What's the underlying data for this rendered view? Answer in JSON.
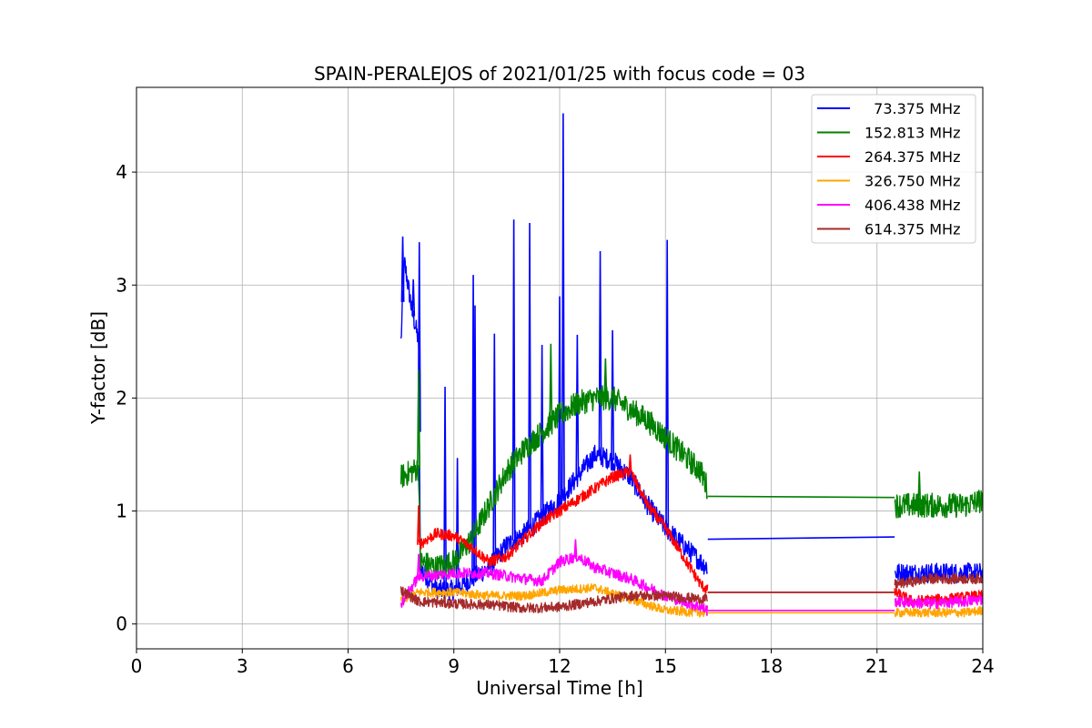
{
  "chart_data": {
    "type": "line",
    "title": "SPAIN-PERALEJOS of 2021/01/25 with focus code = 03",
    "xlabel": "Universal Time [h]",
    "ylabel": "Y-factor [dB]",
    "xlim": [
      0,
      24
    ],
    "ylim": [
      -0.22,
      4.75
    ],
    "xticks": [
      0,
      3,
      6,
      9,
      12,
      15,
      18,
      21,
      24
    ],
    "yticks": [
      0,
      1,
      2,
      3,
      4
    ],
    "grid": true,
    "legend_position": "top-right",
    "gap": [
      16.2,
      21.5
    ],
    "series": [
      {
        "name": "  73.375 MHz",
        "color": "#0000ff",
        "noise": 0.09,
        "x": [
          7.5,
          7.6,
          7.8,
          8.0,
          8.05,
          8.5,
          9.0,
          9.5,
          10.0,
          10.5,
          11.0,
          11.5,
          12.0,
          12.5,
          13.0,
          13.5,
          14.0,
          14.5,
          15.0,
          15.5,
          16.0,
          16.2,
          21.5,
          22.0,
          23.0,
          24.0
        ],
        "y": [
          2.5,
          3.2,
          2.8,
          2.5,
          0.5,
          0.3,
          0.3,
          0.4,
          0.5,
          0.7,
          0.8,
          0.95,
          1.1,
          1.3,
          1.5,
          1.45,
          1.3,
          1.05,
          0.85,
          0.7,
          0.55,
          0.5,
          0.45,
          0.45,
          0.45,
          0.45
        ],
        "spikes": [
          [
            7.55,
            3.43
          ],
          [
            7.85,
            3.05
          ],
          [
            8.02,
            3.38
          ],
          [
            8.75,
            2.1
          ],
          [
            9.1,
            1.47
          ],
          [
            9.55,
            3.09
          ],
          [
            9.6,
            2.82
          ],
          [
            10.15,
            2.57
          ],
          [
            10.7,
            3.58
          ],
          [
            11.15,
            3.55
          ],
          [
            11.5,
            2.47
          ],
          [
            12.0,
            2.9
          ],
          [
            12.1,
            4.52
          ],
          [
            12.5,
            2.56
          ],
          [
            13.15,
            3.3
          ],
          [
            13.5,
            2.6
          ],
          [
            15.05,
            3.4
          ]
        ],
        "gap_line": [
          [
            16.2,
            0.75
          ],
          [
            21.5,
            0.77
          ]
        ]
      },
      {
        "name": "152.813 MHz",
        "color": "#008000",
        "noise": 0.11,
        "x": [
          7.5,
          7.8,
          8.0,
          8.05,
          8.5,
          9.0,
          9.5,
          10.0,
          10.5,
          11.0,
          11.5,
          12.0,
          12.5,
          13.0,
          13.5,
          14.0,
          14.5,
          15.0,
          15.5,
          16.0,
          16.2,
          21.5,
          22.5,
          23.5,
          24.0
        ],
        "y": [
          1.3,
          1.35,
          1.38,
          0.55,
          0.5,
          0.55,
          0.75,
          1.05,
          1.35,
          1.55,
          1.7,
          1.85,
          1.95,
          2.0,
          2.0,
          1.9,
          1.8,
          1.65,
          1.5,
          1.35,
          1.2,
          1.05,
          1.05,
          1.05,
          1.1
        ],
        "spikes": [
          [
            8.0,
            2.25
          ],
          [
            11.75,
            2.48
          ],
          [
            13.3,
            2.35
          ],
          [
            22.2,
            1.35
          ]
        ],
        "gap_line": [
          [
            16.2,
            1.13
          ],
          [
            21.5,
            1.12
          ]
        ]
      },
      {
        "name": "264.375 MHz",
        "color": "#ff0000",
        "noise": 0.05,
        "x": [
          8.0,
          8.5,
          9.0,
          9.5,
          10.0,
          10.5,
          11.0,
          11.5,
          12.0,
          12.5,
          13.0,
          13.5,
          14.0,
          14.5,
          15.0,
          15.5,
          16.0,
          16.2,
          21.5,
          22.0,
          23.0,
          24.0
        ],
        "y": [
          0.7,
          0.8,
          0.78,
          0.68,
          0.55,
          0.6,
          0.75,
          0.9,
          1.0,
          1.1,
          1.2,
          1.3,
          1.35,
          1.05,
          0.85,
          0.6,
          0.35,
          0.3,
          0.28,
          0.2,
          0.22,
          0.25
        ],
        "spikes": [
          [
            8.0,
            1.05
          ],
          [
            14.0,
            1.5
          ]
        ],
        "gap_line": [
          [
            16.2,
            0.28
          ],
          [
            21.5,
            0.28
          ]
        ]
      },
      {
        "name": "326.750 MHz",
        "color": "#ffa500",
        "noise": 0.04,
        "x": [
          7.5,
          8.0,
          9.0,
          10.0,
          11.0,
          12.0,
          13.0,
          14.0,
          15.0,
          16.0,
          16.2,
          21.5,
          22.5,
          23.5,
          24.0
        ],
        "y": [
          0.2,
          0.28,
          0.28,
          0.25,
          0.25,
          0.3,
          0.32,
          0.22,
          0.12,
          0.1,
          0.1,
          0.1,
          0.1,
          0.1,
          0.12
        ],
        "spikes": [],
        "gap_line": [
          [
            16.2,
            0.1
          ],
          [
            21.5,
            0.1
          ]
        ]
      },
      {
        "name": "406.438 MHz",
        "color": "#ff00ff",
        "noise": 0.05,
        "x": [
          7.5,
          8.0,
          9.0,
          10.0,
          11.0,
          11.5,
          12.0,
          12.5,
          13.0,
          14.0,
          15.0,
          16.0,
          16.2,
          21.5,
          22.5,
          23.5,
          24.0
        ],
        "y": [
          0.18,
          0.42,
          0.45,
          0.45,
          0.4,
          0.38,
          0.55,
          0.6,
          0.5,
          0.4,
          0.25,
          0.15,
          0.12,
          0.2,
          0.18,
          0.2,
          0.22
        ],
        "spikes": [
          [
            8.0,
            0.62
          ],
          [
            12.45,
            0.75
          ]
        ],
        "gap_line": [
          [
            16.2,
            0.12
          ],
          [
            21.5,
            0.12
          ]
        ]
      },
      {
        "name": "614.375 MHz",
        "color": "#a52a2a",
        "noise": 0.045,
        "x": [
          7.5,
          8.0,
          9.0,
          10.0,
          11.0,
          12.0,
          13.0,
          14.0,
          15.0,
          16.0,
          16.2,
          21.5,
          22.5,
          23.5,
          24.0
        ],
        "y": [
          0.3,
          0.2,
          0.18,
          0.17,
          0.14,
          0.15,
          0.2,
          0.25,
          0.25,
          0.22,
          0.22,
          0.35,
          0.4,
          0.4,
          0.4
        ],
        "spikes": [],
        "gap_line": [
          [
            16.2,
            0.28
          ],
          [
            21.5,
            0.28
          ]
        ]
      }
    ]
  }
}
